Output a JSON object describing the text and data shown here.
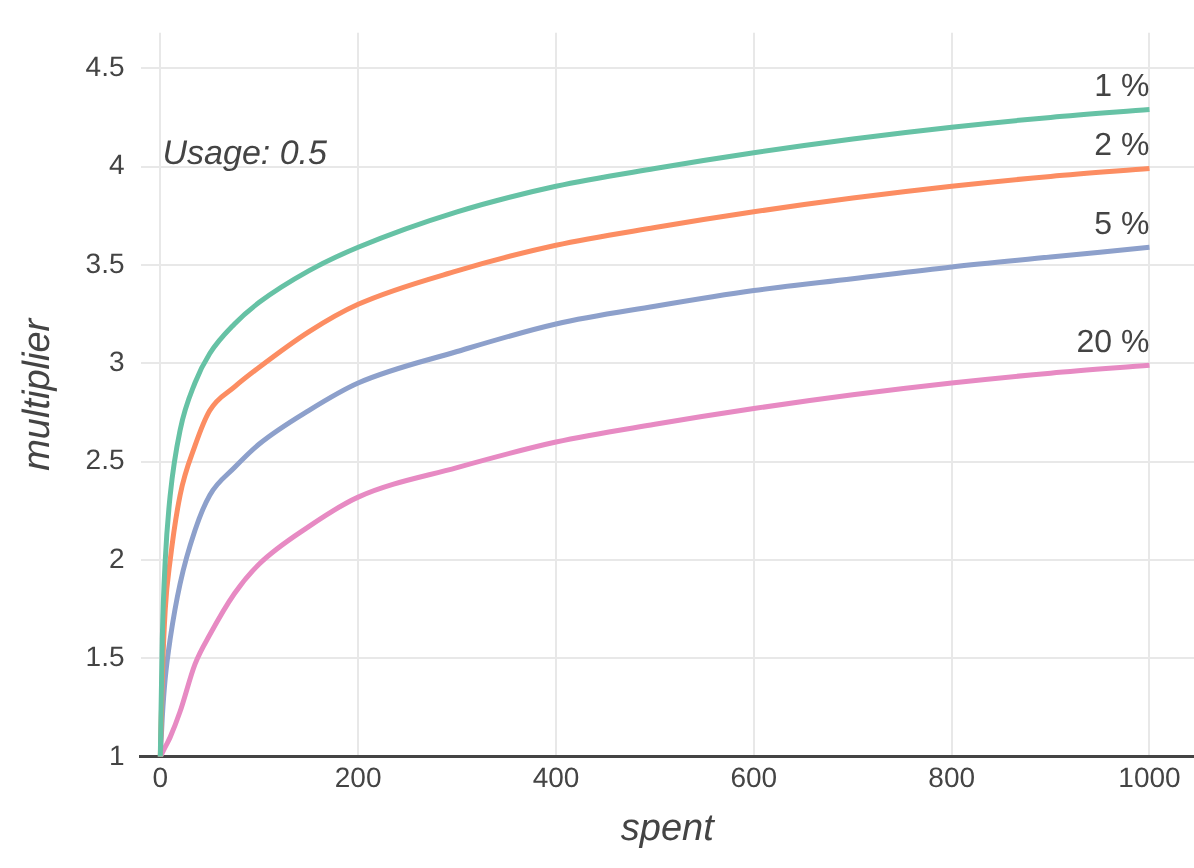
{
  "chart_data": {
    "type": "line",
    "xlabel": "spent",
    "ylabel": "multiplier",
    "annotations": [
      "Usage: 0.5"
    ],
    "x": [
      0,
      2,
      5,
      10,
      20,
      35,
      50,
      75,
      100,
      150,
      200,
      300,
      400,
      500,
      600,
      700,
      800,
      900,
      1000
    ],
    "series": [
      {
        "name": "1 %",
        "color": "#66c2a5",
        "values": [
          1,
          1.6,
          2.0,
          2.33,
          2.66,
          2.9,
          3.05,
          3.2,
          3.31,
          3.47,
          3.59,
          3.77,
          3.9,
          3.99,
          4.07,
          4.14,
          4.2,
          4.25,
          4.29
        ]
      },
      {
        "name": "2 %",
        "color": "#fc8d62",
        "values": [
          1,
          1.4,
          1.75,
          2.0,
          2.33,
          2.58,
          2.76,
          2.88,
          2.98,
          3.16,
          3.3,
          3.47,
          3.6,
          3.69,
          3.77,
          3.84,
          3.9,
          3.95,
          3.99
        ]
      },
      {
        "name": "5 %",
        "color": "#8da0cb",
        "values": [
          1,
          1.2,
          1.4,
          1.6,
          1.88,
          2.15,
          2.33,
          2.47,
          2.59,
          2.76,
          2.9,
          3.06,
          3.2,
          3.29,
          3.37,
          3.43,
          3.49,
          3.54,
          3.59
        ]
      },
      {
        "name": "20 %",
        "color": "#e78ac3",
        "values": [
          1,
          1.02,
          1.05,
          1.1,
          1.23,
          1.47,
          1.62,
          1.83,
          1.98,
          2.17,
          2.32,
          2.47,
          2.6,
          2.69,
          2.77,
          2.84,
          2.9,
          2.95,
          2.99
        ]
      }
    ],
    "xlim": [
      -20,
      1045
    ],
    "ylim": [
      1,
      4.68
    ],
    "xticks": [
      0,
      200,
      400,
      600,
      800,
      1000
    ],
    "yticks": [
      1,
      1.5,
      2,
      2.5,
      3,
      3.5,
      4,
      4.5
    ],
    "grid": true,
    "legend": false,
    "marker": "none",
    "line_style": "solid"
  }
}
